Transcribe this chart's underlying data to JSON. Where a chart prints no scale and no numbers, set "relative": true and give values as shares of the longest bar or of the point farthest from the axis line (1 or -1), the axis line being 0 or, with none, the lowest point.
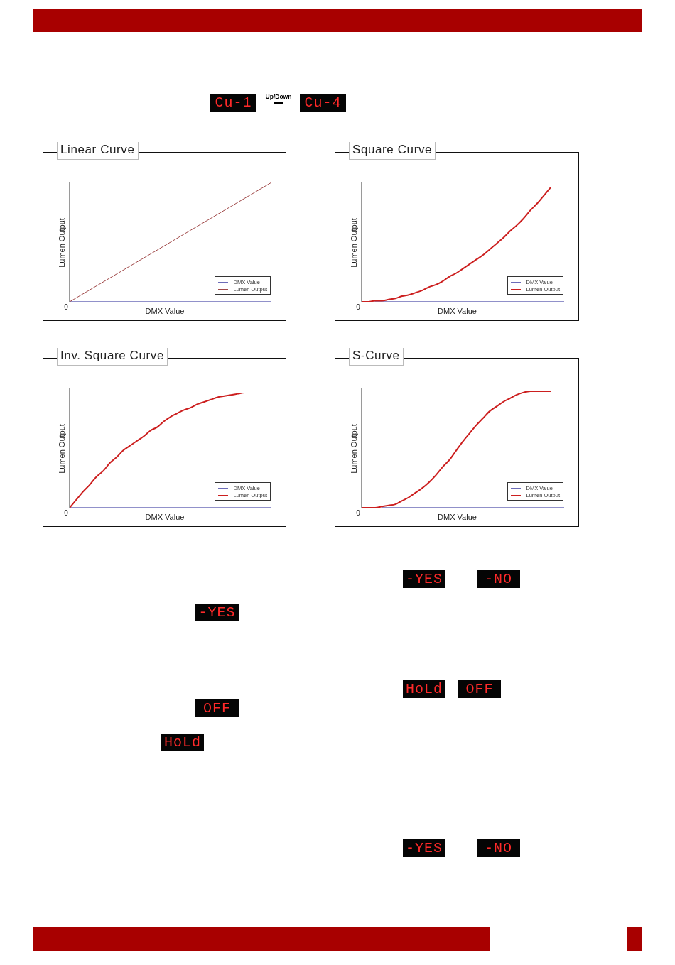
{
  "chart_data": [
    {
      "type": "line",
      "title": "Linear Curve",
      "xlabel": "DMX Value",
      "ylabel": "Lumen Output",
      "relative": true,
      "legend": "bottom right",
      "marker": "none",
      "annotations": [
        "0"
      ],
      "categories": [
        null,
        null,
        null,
        null,
        null,
        null,
        null,
        null,
        null,
        null,
        null
      ],
      "series": [
        {
          "name": "DMX Value",
          "color": "#6c6cb8",
          "values": [
            0,
            0,
            0,
            0,
            0,
            0,
            0,
            0,
            0,
            0,
            0
          ]
        },
        {
          "name": "Lumen Output",
          "color": "#a04848",
          "values": [
            0,
            0.1,
            0.2,
            0.3,
            0.4,
            0.5,
            0.6,
            0.7,
            0.8,
            0.9,
            1
          ]
        }
      ]
    },
    {
      "type": "line",
      "title": "Square Curve",
      "xlabel": "DMX Value",
      "ylabel": "Lumen Output",
      "relative": true,
      "legend": "bottom right",
      "marker": "none",
      "annotations": [
        "0"
      ],
      "categories": [
        null,
        null,
        null,
        null,
        null,
        null,
        null,
        null,
        null,
        null,
        null,
        null,
        null,
        null,
        null,
        null,
        null,
        null,
        null,
        null,
        null,
        null,
        null,
        null,
        null,
        null,
        null,
        null,
        null,
        null,
        null
      ],
      "series": [
        {
          "name": "DMX Value",
          "color": "#6c6cb8",
          "values": [
            null,
            null,
            0,
            0,
            0,
            0,
            0,
            0,
            0,
            0,
            0,
            0,
            0,
            0,
            0,
            0,
            0,
            0,
            0,
            0,
            0,
            0,
            0,
            0,
            0,
            0,
            0,
            0,
            0,
            0,
            0
          ]
        },
        {
          "name": "Lumen Output",
          "color": "#cc1f1f",
          "values": [
            0,
            0,
            0.01,
            0.01,
            0.02,
            0.03,
            0.05,
            0.06,
            0.08,
            0.1,
            0.13,
            0.15,
            0.18,
            0.22,
            0.25,
            0.29,
            0.33,
            0.37,
            0.41,
            0.46,
            0.51,
            0.56,
            0.62,
            0.67,
            0.73,
            0.8,
            0.86,
            0.93,
            1,
            null,
            null
          ]
        }
      ]
    },
    {
      "type": "line",
      "title": "Inv. Square Curve",
      "xlabel": "DMX Value",
      "ylabel": "Lumen Output",
      "relative": true,
      "legend": "bottom right",
      "marker": "none",
      "annotations": [
        "0"
      ],
      "categories": [
        null,
        null,
        null,
        null,
        null,
        null,
        null,
        null,
        null,
        null,
        null,
        null,
        null,
        null,
        null,
        null,
        null,
        null,
        null,
        null,
        null,
        null,
        null,
        null,
        null,
        null,
        null,
        null,
        null,
        null,
        null
      ],
      "series": [
        {
          "name": "DMX Value",
          "color": "#6c6cb8",
          "values": [
            0,
            0,
            0,
            0,
            0,
            0,
            0,
            0,
            0,
            0,
            0,
            0,
            0,
            0,
            0,
            0,
            0,
            0,
            0,
            0,
            0,
            0,
            0,
            0,
            0,
            0,
            0,
            0,
            0,
            0,
            0
          ]
        },
        {
          "name": "Lumen Output",
          "color": "#cc1f1f",
          "values": [
            0,
            0.07,
            0.14,
            0.2,
            0.27,
            0.32,
            0.39,
            0.44,
            0.5,
            0.54,
            0.58,
            0.62,
            0.67,
            0.7,
            0.75,
            0.79,
            0.82,
            0.85,
            0.87,
            0.9,
            0.92,
            0.94,
            0.96,
            0.97,
            0.98,
            0.99,
            1,
            1,
            1,
            null,
            null
          ]
        }
      ]
    },
    {
      "type": "line",
      "title": "S-Curve",
      "xlabel": "DMX Value",
      "ylabel": "Lumen Output",
      "relative": true,
      "legend": "bottom right",
      "marker": "none",
      "annotations": [
        "0"
      ],
      "categories": [
        null,
        null,
        null,
        null,
        null,
        null,
        null,
        null,
        null,
        null,
        null,
        null,
        null,
        null,
        null,
        null,
        null,
        null,
        null,
        null,
        null,
        null,
        null,
        null,
        null,
        null,
        null,
        null,
        null,
        null,
        null
      ],
      "series": [
        {
          "name": "DMX Value",
          "color": "#6c6cb8",
          "values": [
            null,
            null,
            null,
            0,
            0,
            0,
            0,
            0,
            0,
            0,
            0,
            0,
            0,
            0,
            0,
            0,
            0,
            0,
            0,
            0,
            0,
            0,
            0,
            0,
            0,
            0,
            0,
            0,
            0,
            0,
            0
          ]
        },
        {
          "name": "Lumen Output",
          "color": "#cc1f1f",
          "values": [
            0,
            0,
            0,
            0.01,
            0.02,
            0.03,
            0.06,
            0.09,
            0.13,
            0.17,
            0.22,
            0.28,
            0.35,
            0.41,
            0.49,
            0.57,
            0.64,
            0.71,
            0.77,
            0.83,
            0.87,
            0.91,
            0.94,
            0.97,
            0.99,
            1,
            1,
            1,
            1,
            null,
            null
          ]
        }
      ]
    },
    {
      "type": "other",
      "annotations": [
        "Cu-1",
        "Up/Down",
        "Cu-4",
        "-YES",
        "-NO",
        "-YES",
        "HoLd",
        "OFF",
        "OFF",
        "HoLd",
        "-YES",
        "-NO"
      ]
    }
  ]
}
